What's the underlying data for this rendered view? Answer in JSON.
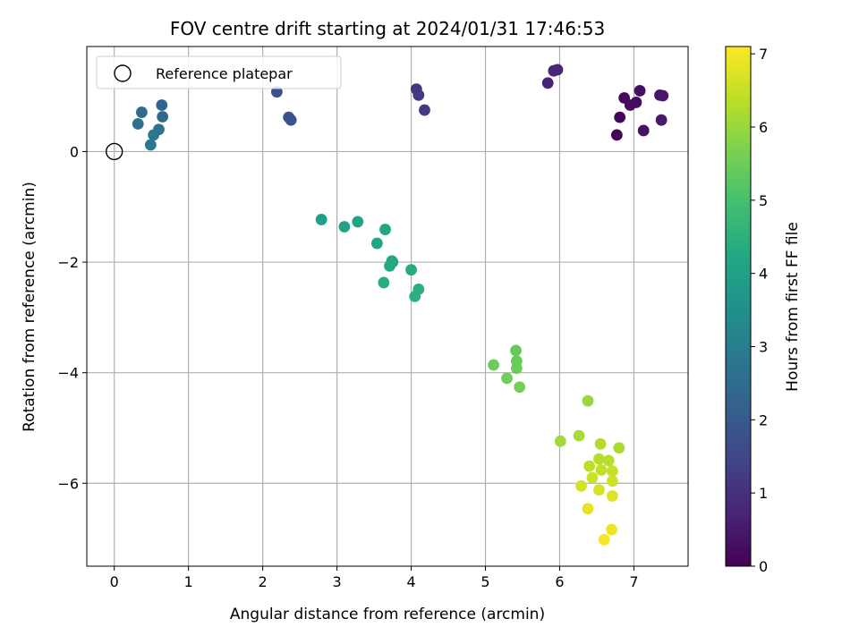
{
  "chart_data": {
    "type": "scatter",
    "title": "FOV centre drift starting at 2024/01/31 17:46:53",
    "xlabel": "Angular distance from reference (arcmin)",
    "ylabel": "Rotation from reference (arcmin)",
    "xlim": [
      -0.37,
      7.73
    ],
    "ylim": [
      -7.5,
      1.9
    ],
    "xticks": [
      0,
      1,
      2,
      3,
      4,
      5,
      6,
      7
    ],
    "yticks": [
      0,
      -2,
      -4,
      -6
    ],
    "ytick_labels": [
      "0",
      "−2",
      "−4",
      "−6"
    ],
    "grid": true,
    "legend": {
      "position": "top-left",
      "entries": [
        "Reference platepar"
      ]
    },
    "reference_point": {
      "x": 0,
      "y": 0
    },
    "colorbar": {
      "label": "Hours from first FF file",
      "colormap": "viridis",
      "range": [
        0,
        7.1
      ],
      "ticks": [
        0,
        1,
        2,
        3,
        4,
        5,
        6,
        7
      ]
    },
    "points": [
      {
        "x": 6.77,
        "y": 0.3,
        "c": 0.05
      },
      {
        "x": 6.81,
        "y": 0.62,
        "c": 0.1
      },
      {
        "x": 6.87,
        "y": 0.97,
        "c": 0.15
      },
      {
        "x": 6.95,
        "y": 0.84,
        "c": 0.2
      },
      {
        "x": 7.03,
        "y": 0.89,
        "c": 0.25
      },
      {
        "x": 7.08,
        "y": 1.1,
        "c": 0.3
      },
      {
        "x": 7.13,
        "y": 0.38,
        "c": 0.35
      },
      {
        "x": 7.35,
        "y": 1.02,
        "c": 0.4
      },
      {
        "x": 7.39,
        "y": 1.01,
        "c": 0.45
      },
      {
        "x": 7.37,
        "y": 0.57,
        "c": 0.5
      },
      {
        "x": 5.84,
        "y": 1.24,
        "c": 0.7
      },
      {
        "x": 5.92,
        "y": 1.46,
        "c": 0.75
      },
      {
        "x": 5.97,
        "y": 1.48,
        "c": 0.8
      },
      {
        "x": 4.07,
        "y": 1.13,
        "c": 1.1
      },
      {
        "x": 4.1,
        "y": 1.02,
        "c": 1.15
      },
      {
        "x": 4.18,
        "y": 0.75,
        "c": 1.2
      },
      {
        "x": 2.19,
        "y": 1.08,
        "c": 1.7
      },
      {
        "x": 2.35,
        "y": 0.62,
        "c": 1.8
      },
      {
        "x": 2.38,
        "y": 0.57,
        "c": 1.85
      },
      {
        "x": 0.64,
        "y": 0.84,
        "c": 2.3
      },
      {
        "x": 0.65,
        "y": 0.63,
        "c": 2.4
      },
      {
        "x": 0.37,
        "y": 0.71,
        "c": 2.5
      },
      {
        "x": 0.32,
        "y": 0.5,
        "c": 2.6
      },
      {
        "x": 0.6,
        "y": 0.4,
        "c": 2.7
      },
      {
        "x": 0.53,
        "y": 0.3,
        "c": 2.8
      },
      {
        "x": 0.49,
        "y": 0.12,
        "c": 2.9
      },
      {
        "x": 2.79,
        "y": -1.23,
        "c": 4.0
      },
      {
        "x": 3.1,
        "y": -1.36,
        "c": 4.05
      },
      {
        "x": 3.28,
        "y": -1.27,
        "c": 4.1
      },
      {
        "x": 3.65,
        "y": -1.41,
        "c": 4.15
      },
      {
        "x": 3.54,
        "y": -1.66,
        "c": 4.2
      },
      {
        "x": 3.74,
        "y": -1.98,
        "c": 4.25
      },
      {
        "x": 3.75,
        "y": -2.0,
        "c": 4.3
      },
      {
        "x": 3.71,
        "y": -2.07,
        "c": 4.3
      },
      {
        "x": 4.0,
        "y": -2.14,
        "c": 4.35
      },
      {
        "x": 3.63,
        "y": -2.37,
        "c": 4.4
      },
      {
        "x": 4.1,
        "y": -2.49,
        "c": 4.45
      },
      {
        "x": 4.05,
        "y": -2.62,
        "c": 4.5
      },
      {
        "x": 5.41,
        "y": -3.6,
        "c": 5.4
      },
      {
        "x": 5.42,
        "y": -3.79,
        "c": 5.45
      },
      {
        "x": 5.42,
        "y": -3.92,
        "c": 5.5
      },
      {
        "x": 5.11,
        "y": -3.86,
        "c": 5.5
      },
      {
        "x": 5.29,
        "y": -4.1,
        "c": 5.55
      },
      {
        "x": 5.46,
        "y": -4.26,
        "c": 5.6
      },
      {
        "x": 6.38,
        "y": -4.51,
        "c": 6.0
      },
      {
        "x": 6.01,
        "y": -5.24,
        "c": 6.1
      },
      {
        "x": 6.26,
        "y": -5.14,
        "c": 6.15
      },
      {
        "x": 6.8,
        "y": -5.36,
        "c": 6.2
      },
      {
        "x": 6.55,
        "y": -5.29,
        "c": 6.25
      },
      {
        "x": 6.53,
        "y": -5.56,
        "c": 6.3
      },
      {
        "x": 6.66,
        "y": -5.59,
        "c": 6.35
      },
      {
        "x": 6.4,
        "y": -5.69,
        "c": 6.4
      },
      {
        "x": 6.56,
        "y": -5.76,
        "c": 6.45
      },
      {
        "x": 6.71,
        "y": -5.78,
        "c": 6.5
      },
      {
        "x": 6.44,
        "y": -5.9,
        "c": 6.55
      },
      {
        "x": 6.71,
        "y": -5.96,
        "c": 6.6
      },
      {
        "x": 6.29,
        "y": -6.05,
        "c": 6.65
      },
      {
        "x": 6.53,
        "y": -6.12,
        "c": 6.7
      },
      {
        "x": 6.71,
        "y": -6.23,
        "c": 6.75
      },
      {
        "x": 6.38,
        "y": -6.46,
        "c": 6.85
      },
      {
        "x": 6.7,
        "y": -6.84,
        "c": 6.95
      },
      {
        "x": 6.6,
        "y": -7.02,
        "c": 7.05
      }
    ]
  }
}
